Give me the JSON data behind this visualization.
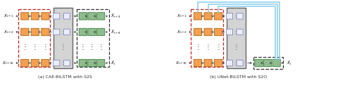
{
  "figsize": [
    5.0,
    1.35
  ],
  "dpi": 100,
  "bg_color": "#ffffff",
  "orange_color": "#F5A050",
  "green_color": "#8FBC8F",
  "arrow_color": "#444444",
  "skip_color": "#87CEEB",
  "bilstm_bg": "#D4D4D4",
  "bilstm_border": "#666666",
  "lstm_cell_fc": "#E8EEFF",
  "lstm_cell_ec": "#8888BB",
  "red_dash_color": "#CC2222",
  "black_dash_color": "#333333",
  "caption_a": "(a) CAE-BiLSTM with S2S",
  "caption_b": "(b) UNet-BiLSTM with S2O",
  "caption_fontsize": 4.5,
  "label_fontsize": 4.0,
  "dot_fontsize": 7
}
